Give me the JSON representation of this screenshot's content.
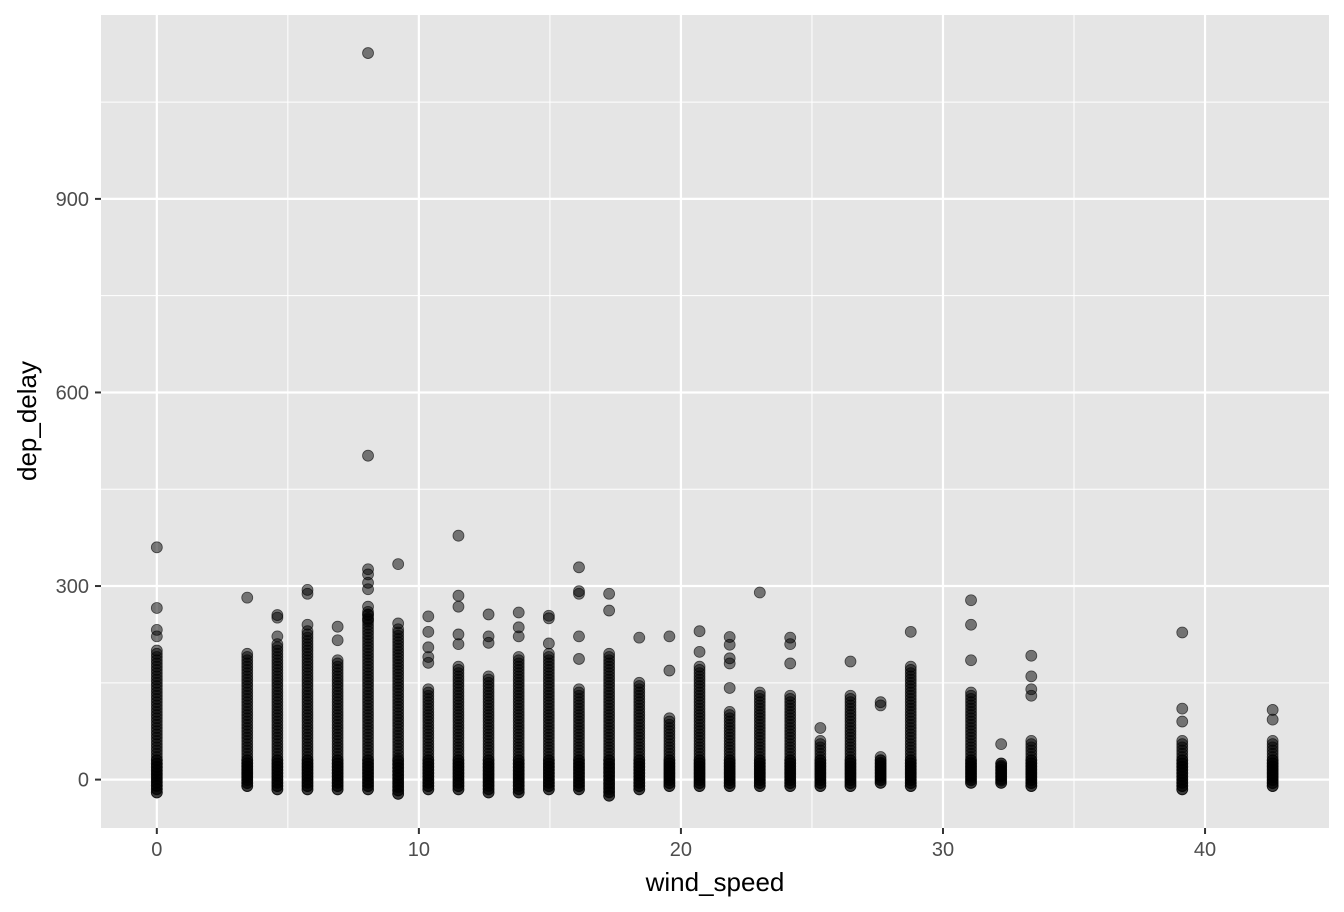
{
  "chart_data": {
    "type": "scatter",
    "title": "",
    "xlabel": "wind_speed",
    "ylabel": "dep_delay",
    "xlim": [
      -2.13,
      44.73
    ],
    "ylim": [
      -75,
      1185
    ],
    "x_ticks": [
      0,
      10,
      20,
      30,
      40
    ],
    "y_ticks": [
      0,
      300,
      600,
      900
    ],
    "x_tick_labels": [
      "0",
      "10",
      "20",
      "30",
      "40"
    ],
    "y_tick_labels": [
      "0",
      "300",
      "600",
      "900"
    ],
    "grid": true,
    "legend": "none",
    "point_color": "#000000",
    "point_alpha": 0.5,
    "panel_color": "#e5e5e5",
    "grid_color": "#ffffff",
    "columns": [
      {
        "x": 0,
        "low": -20,
        "high": 200,
        "outliers": [
          360,
          266,
          232,
          222
        ]
      },
      {
        "x": 3.45,
        "low": -10,
        "high": 195,
        "outliers": [
          282
        ]
      },
      {
        "x": 4.6,
        "low": -15,
        "high": 210,
        "outliers": [
          255,
          251,
          222
        ]
      },
      {
        "x": 5.75,
        "low": -15,
        "high": 230,
        "outliers": [
          294,
          288,
          240
        ]
      },
      {
        "x": 6.9,
        "low": -15,
        "high": 185,
        "outliers": [
          237,
          216
        ]
      },
      {
        "x": 8.06,
        "low": -15,
        "high": 260,
        "outliers": [
          1126,
          502,
          326,
          318,
          305,
          295,
          268,
          256,
          248
        ]
      },
      {
        "x": 9.21,
        "low": -22,
        "high": 235,
        "outliers": [
          334,
          242
        ]
      },
      {
        "x": 10.36,
        "low": -15,
        "high": 140,
        "outliers": [
          253,
          229,
          205,
          190,
          181
        ]
      },
      {
        "x": 11.51,
        "low": -15,
        "high": 175,
        "outliers": [
          378,
          285,
          268,
          225,
          210
        ]
      },
      {
        "x": 12.66,
        "low": -20,
        "high": 160,
        "outliers": [
          256,
          222,
          212
        ]
      },
      {
        "x": 13.81,
        "low": -20,
        "high": 190,
        "outliers": [
          259,
          236,
          222
        ]
      },
      {
        "x": 14.96,
        "low": -15,
        "high": 195,
        "outliers": [
          254,
          250,
          211
        ]
      },
      {
        "x": 16.11,
        "low": -15,
        "high": 140,
        "outliers": [
          329,
          292,
          288,
          222,
          187
        ]
      },
      {
        "x": 17.26,
        "low": -25,
        "high": 195,
        "outliers": [
          288,
          262
        ]
      },
      {
        "x": 18.41,
        "low": -15,
        "high": 150,
        "outliers": [
          220
        ]
      },
      {
        "x": 19.56,
        "low": -10,
        "high": 95,
        "outliers": [
          222,
          169
        ]
      },
      {
        "x": 20.71,
        "low": -10,
        "high": 175,
        "outliers": [
          230,
          198
        ]
      },
      {
        "x": 21.86,
        "low": -10,
        "high": 105,
        "outliers": [
          221,
          209,
          188,
          180,
          142
        ]
      },
      {
        "x": 23.01,
        "low": -10,
        "high": 135,
        "outliers": [
          290
        ]
      },
      {
        "x": 24.17,
        "low": -10,
        "high": 130,
        "outliers": [
          220,
          210,
          180
        ]
      },
      {
        "x": 25.32,
        "low": -10,
        "high": 60,
        "outliers": [
          80
        ]
      },
      {
        "x": 26.47,
        "low": -10,
        "high": 130,
        "outliers": [
          183
        ]
      },
      {
        "x": 27.62,
        "low": -5,
        "high": 35,
        "outliers": [
          120,
          115
        ]
      },
      {
        "x": 28.77,
        "low": -10,
        "high": 175,
        "outliers": [
          229
        ]
      },
      {
        "x": 31.07,
        "low": -5,
        "high": 135,
        "outliers": [
          278,
          240,
          185
        ]
      },
      {
        "x": 32.22,
        "low": -5,
        "high": 25,
        "outliers": [
          55
        ]
      },
      {
        "x": 33.37,
        "low": -10,
        "high": 60,
        "outliers": [
          192,
          160,
          140,
          130
        ]
      },
      {
        "x": 39.13,
        "low": -15,
        "high": 60,
        "outliers": [
          228,
          110,
          90
        ]
      },
      {
        "x": 42.58,
        "low": -10,
        "high": 60,
        "outliers": [
          108,
          93
        ]
      }
    ]
  }
}
